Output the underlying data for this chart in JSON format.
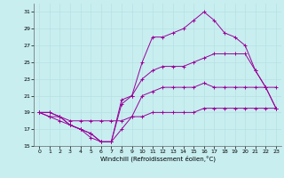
{
  "xlabel": "Windchill (Refroidissement éolien,°C)",
  "bg_color": "#c8eef0",
  "line_color": "#990099",
  "grid_color": "#b8e0e4",
  "xlim": [
    -0.5,
    23.5
  ],
  "ylim": [
    15,
    32
  ],
  "yticks": [
    15,
    17,
    19,
    21,
    23,
    25,
    27,
    29,
    31
  ],
  "xticks": [
    0,
    1,
    2,
    3,
    4,
    5,
    6,
    7,
    8,
    9,
    10,
    11,
    12,
    13,
    14,
    15,
    16,
    17,
    18,
    19,
    20,
    21,
    22,
    23
  ],
  "series": [
    {
      "x": [
        0,
        1,
        2,
        3,
        4,
        5,
        6,
        7,
        8,
        9,
        10,
        11,
        12,
        13,
        14,
        15,
        16,
        17,
        18,
        19,
        20,
        21,
        22,
        23
      ],
      "y": [
        19,
        18.5,
        18.5,
        18,
        18,
        18,
        18,
        18,
        18,
        18.5,
        18.5,
        19,
        19,
        19,
        19,
        19,
        19.5,
        19.5,
        19.5,
        19.5,
        19.5,
        19.5,
        19.5,
        19.5
      ]
    },
    {
      "x": [
        0,
        1,
        2,
        3,
        4,
        5,
        6,
        7,
        8,
        9,
        10,
        11,
        12,
        13,
        14,
        15,
        16,
        17,
        18,
        19,
        20,
        21,
        22,
        23
      ],
      "y": [
        19,
        18.5,
        18,
        17.5,
        17,
        16,
        15.5,
        15.5,
        17,
        18.5,
        21,
        21.5,
        22,
        22,
        22,
        22,
        22.5,
        22,
        22,
        22,
        22,
        22,
        22,
        22
      ]
    },
    {
      "x": [
        0,
        1,
        2,
        3,
        4,
        5,
        6,
        7,
        8,
        9,
        10,
        11,
        12,
        13,
        14,
        15,
        16,
        17,
        18,
        19,
        20,
        21,
        22,
        23
      ],
      "y": [
        19,
        19,
        18.5,
        17.5,
        17,
        16.5,
        15.5,
        15.5,
        20,
        21,
        23,
        24,
        24.5,
        24.5,
        24.5,
        25,
        25.5,
        26,
        26,
        26,
        26,
        24,
        22,
        19.5
      ]
    },
    {
      "x": [
        0,
        1,
        2,
        3,
        4,
        5,
        6,
        7,
        8,
        9,
        10,
        11,
        12,
        13,
        14,
        15,
        16,
        17,
        18,
        19,
        20,
        21,
        22,
        23
      ],
      "y": [
        19,
        19,
        18.5,
        17.5,
        17,
        16.5,
        15.5,
        15.5,
        20.5,
        21,
        25,
        28,
        28,
        28.5,
        29,
        30,
        31,
        30,
        28.5,
        28,
        27,
        24,
        22,
        19.5
      ]
    }
  ]
}
